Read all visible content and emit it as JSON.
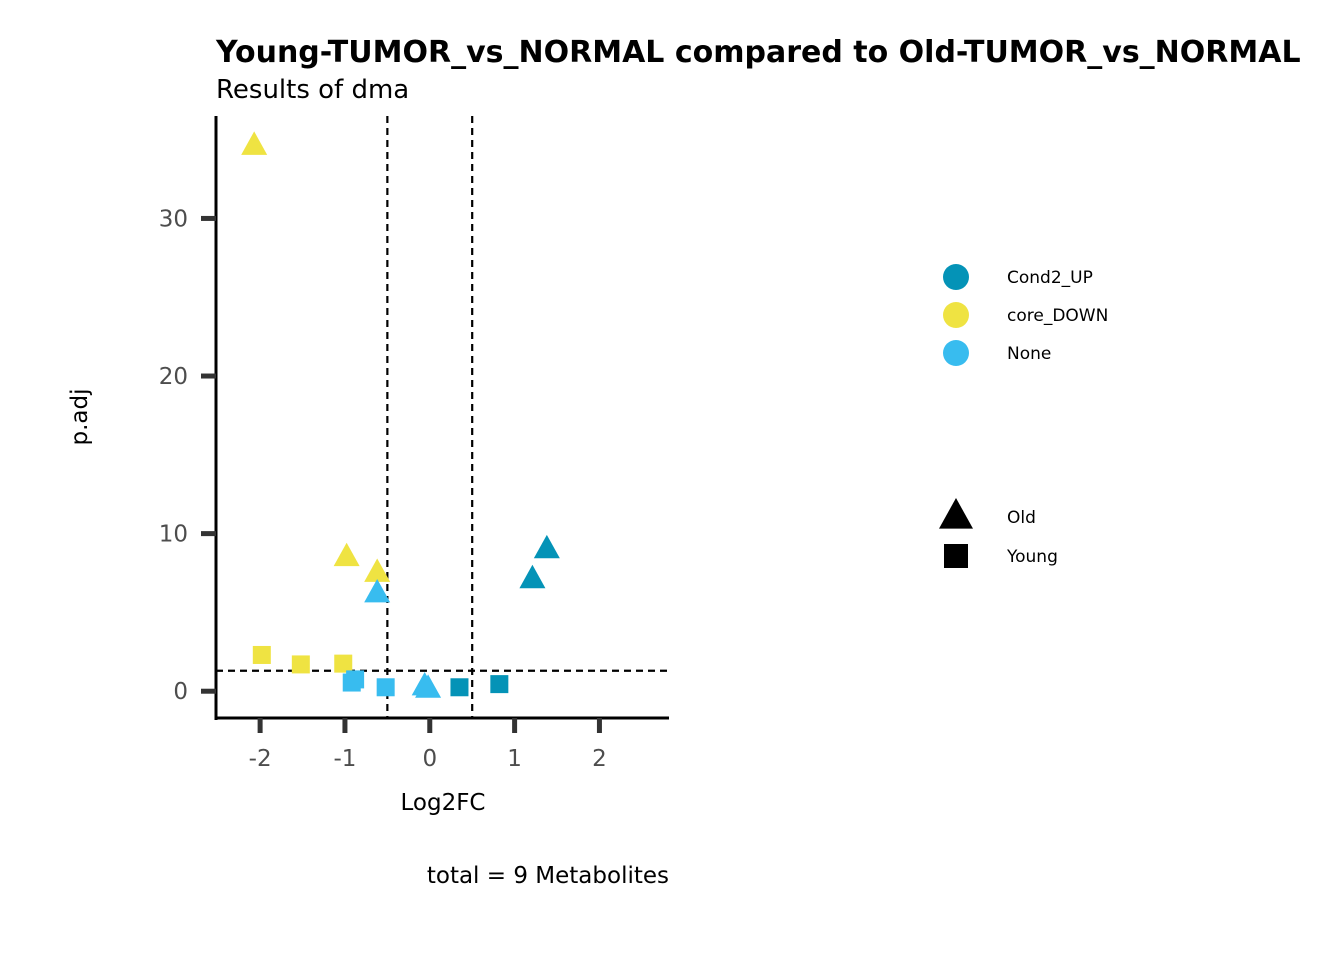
{
  "chart_data": {
    "type": "scatter",
    "title": "Young-TUMOR_vs_NORMAL compared to Old-TUMOR_vs_NORMAL",
    "subtitle": "Results of dma",
    "xlabel": "Log2FC",
    "ylabel": "p.adj",
    "caption": "total = 9 Metabolites",
    "xlim": [
      -2.52,
      2.82
    ],
    "ylim": [
      -1.7,
      36.5
    ],
    "x_ticks": [
      -2,
      -1,
      0,
      1,
      2
    ],
    "y_ticks": [
      0,
      10,
      20,
      30
    ],
    "vlines": [
      -0.5,
      0.5
    ],
    "hline": 1.3,
    "grid": false,
    "legend_position": "right",
    "color_legend": [
      {
        "key": "Cond2_UP",
        "label": "Cond2_UP",
        "color": "#0493b7"
      },
      {
        "key": "core_DOWN",
        "label": "core_DOWN",
        "color": "#efe342"
      },
      {
        "key": "None",
        "label": "None",
        "color": "#38bcef"
      }
    ],
    "shape_legend": [
      {
        "key": "Old",
        "label": "Old",
        "shape": "triangle"
      },
      {
        "key": "Young",
        "label": "Young",
        "shape": "square"
      }
    ],
    "points": [
      {
        "x": -2.07,
        "y": 34.6,
        "color": "core_DOWN",
        "shape": "Old"
      },
      {
        "x": -0.98,
        "y": 8.5,
        "color": "core_DOWN",
        "shape": "Old"
      },
      {
        "x": -0.62,
        "y": 7.5,
        "color": "core_DOWN",
        "shape": "Old"
      },
      {
        "x": -0.62,
        "y": 6.2,
        "color": "None",
        "shape": "Old"
      },
      {
        "x": -0.06,
        "y": 0.3,
        "color": "None",
        "shape": "Old"
      },
      {
        "x": -0.02,
        "y": 0.15,
        "color": "None",
        "shape": "Old"
      },
      {
        "x": 1.21,
        "y": 7.1,
        "color": "Cond2_UP",
        "shape": "Old"
      },
      {
        "x": 1.38,
        "y": 9.0,
        "color": "Cond2_UP",
        "shape": "Old"
      },
      {
        "x": -1.98,
        "y": 2.3,
        "color": "core_DOWN",
        "shape": "Young"
      },
      {
        "x": -1.52,
        "y": 1.7,
        "color": "core_DOWN",
        "shape": "Young"
      },
      {
        "x": -1.02,
        "y": 1.75,
        "color": "core_DOWN",
        "shape": "Young"
      },
      {
        "x": -0.92,
        "y": 0.55,
        "color": "None",
        "shape": "Young"
      },
      {
        "x": -0.88,
        "y": 0.75,
        "color": "None",
        "shape": "Young"
      },
      {
        "x": -0.52,
        "y": 0.25,
        "color": "None",
        "shape": "Young"
      },
      {
        "x": 0.35,
        "y": 0.25,
        "color": "Cond2_UP",
        "shape": "Young"
      },
      {
        "x": 0.82,
        "y": 0.45,
        "color": "Cond2_UP",
        "shape": "Young"
      }
    ]
  }
}
